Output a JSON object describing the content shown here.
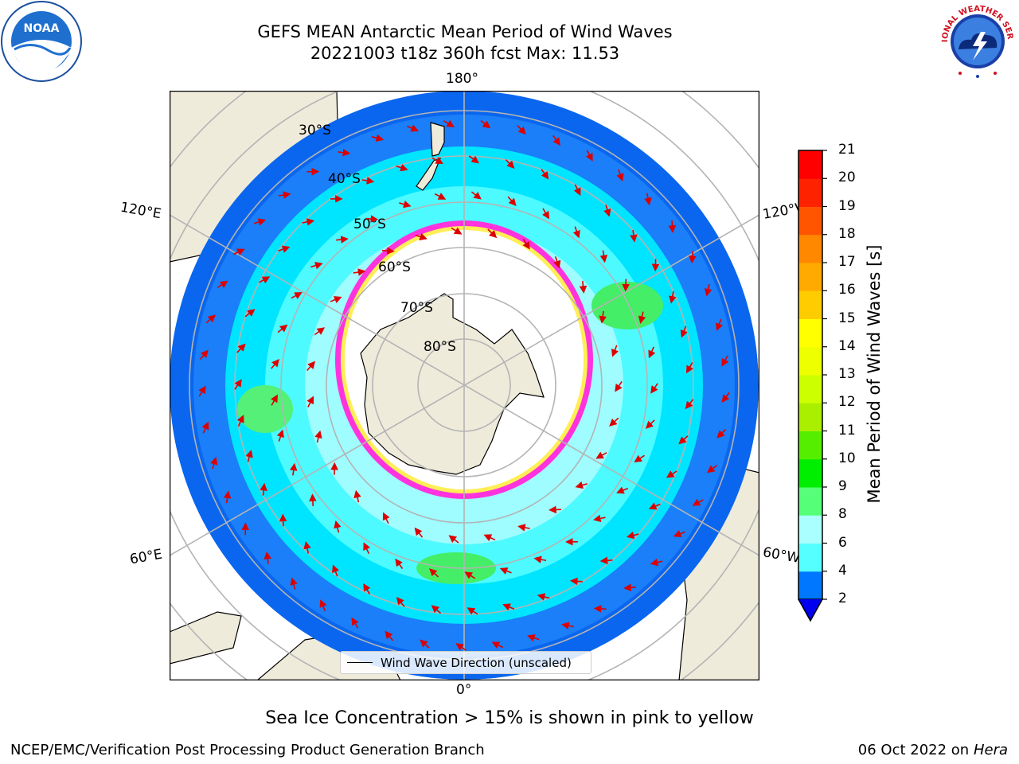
{
  "title_line1": "GEFS MEAN Antarctic Mean Period of Wind Waves",
  "title_line2": "20221003 t18z 360h fcst   Max: 11.53",
  "map": {
    "meridian_labels": {
      "top": "180°",
      "bottom": "0°",
      "left_upper": "120°E",
      "left_lower": "60°E",
      "right_upper": "120°W",
      "right_lower": "60°W"
    },
    "parallel_labels": [
      "30°S",
      "40°S",
      "50°S",
      "60°S",
      "70°S",
      "80°S"
    ],
    "legend_label": "Wind Wave Direction (unscaled)"
  },
  "colorbar": {
    "title": "Mean Period of Wind Waves [s]",
    "ticks": [
      "2",
      "4",
      "6",
      "8",
      "9",
      "10",
      "11",
      "12",
      "13",
      "14",
      "15",
      "16",
      "17",
      "18",
      "19",
      "20",
      "21"
    ],
    "colors": [
      "#0077ff",
      "#00ddff",
      "#55ffff",
      "#aaffff",
      "#55ff77",
      "#00ee00",
      "#55ee00",
      "#aaee00",
      "#ccff00",
      "#eeff00",
      "#ffff00",
      "#ffcc00",
      "#ffaa00",
      "#ff8800",
      "#ff5500",
      "#ff2200",
      "#ff0000"
    ],
    "extend_color": "#0000ee"
  },
  "subtitle": "Sea Ice Concentration > 15% is shown in pink to yellow",
  "footer_left": "NCEP/EMC/Verification Post Processing Product Generation Branch",
  "footer_date": "06 Oct 2022 on",
  "footer_host": "Hera",
  "logos": {
    "noaa_text": "NOAA",
    "nws_text": "NATIONAL WEATHER SERVICE"
  }
}
